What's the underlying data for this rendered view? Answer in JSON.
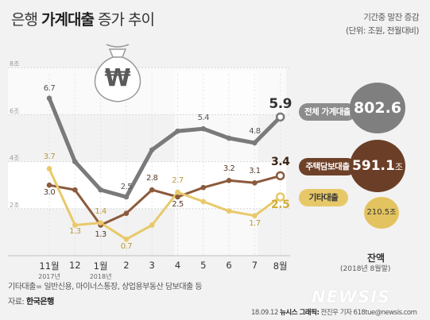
{
  "header": {
    "title_prefix": "은행",
    "title_bold": "가계대출",
    "title_suffix": "증가 추이",
    "note1": "기간중 말잔 증감",
    "note2": "(단위: 조원, 전월대비)"
  },
  "chart_data": {
    "type": "line",
    "categories": [
      "11월",
      "12",
      "1월",
      "2",
      "3",
      "4",
      "5",
      "6",
      "7",
      "8월"
    ],
    "year_labels": [
      {
        "index": 0,
        "text": "2017년"
      },
      {
        "index": 2,
        "text": "2018년"
      }
    ],
    "ylim": [
      0,
      8
    ],
    "y_ticks": [
      {
        "value": 2,
        "label": "2조"
      },
      {
        "value": 4,
        "label": "4조"
      },
      {
        "value": 6,
        "label": "6조"
      },
      {
        "value": 8,
        "label": "8조"
      }
    ],
    "series": [
      {
        "name": "전체 가계대출",
        "color": "#7a7a7a",
        "values": [
          6.7,
          4.0,
          2.8,
          2.5,
          4.5,
          5.3,
          5.4,
          5.0,
          4.8,
          5.9
        ],
        "labels": [
          "6.7",
          null,
          null,
          "2.5",
          null,
          null,
          "5.4",
          null,
          "4.8",
          "5.9"
        ]
      },
      {
        "name": "주택담보대출",
        "color": "#8b5a3c",
        "values": [
          3.0,
          2.8,
          1.3,
          1.8,
          2.8,
          2.5,
          2.9,
          3.2,
          3.1,
          3.4
        ],
        "labels": [
          "3.0",
          null,
          "1.3",
          null,
          "2.8",
          "2.5",
          null,
          "3.2",
          "3.1",
          "3.4"
        ]
      },
      {
        "name": "기타대출",
        "color": "#e8c96a",
        "values": [
          3.7,
          1.3,
          1.4,
          0.7,
          1.3,
          2.7,
          2.3,
          1.9,
          1.7,
          2.5
        ],
        "labels": [
          "3.7",
          "1.3",
          "1.4",
          "0.7",
          null,
          "2.7",
          null,
          null,
          "1.7",
          "2.5"
        ]
      }
    ],
    "balance": {
      "title": "잔액",
      "subtitle": "(2018년 8월말)",
      "items": [
        {
          "name": "전체 가계대출",
          "value": "802.6",
          "unit": "조"
        },
        {
          "name": "주택담보대출",
          "value": "591.1",
          "unit": "조"
        },
        {
          "name": "기타대출",
          "value": "210.5",
          "unit": "조"
        }
      ]
    }
  },
  "footer": {
    "note": "기타대출= 일반신용, 마이너스통장, 상업용부동산 담보대출 등",
    "source_label": "자료:",
    "source": "한국은행",
    "date": "18.09.12",
    "agency": "뉴시스 그래픽:",
    "author": "전진우 기자 618tue@newsis.com",
    "logo": "NEWSIS"
  },
  "icon": {
    "name": "money-bag-icon",
    "symbol": "₩"
  }
}
